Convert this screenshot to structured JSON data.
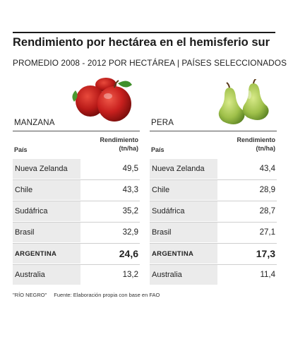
{
  "title": "Rendimiento por hectárea en el hemisferio sur",
  "subtitle": "PROMEDIO 2008 - 2012 POR HECTÁREA | PAÍSES SELECCIONADOS",
  "footer": {
    "credit": "\"RÍO NEGRO\"",
    "source": "Fuente: Elaboración propia con base en FAO"
  },
  "chart_data": [
    {
      "type": "table",
      "title": "MANZANA",
      "columns": [
        "País",
        "Rendimiento (tn/ha)"
      ],
      "rows": [
        {
          "country": "Nueva Zelanda",
          "value": "49,5",
          "highlight": false
        },
        {
          "country": "Chile",
          "value": "43,3",
          "highlight": false
        },
        {
          "country": "Sudáfrica",
          "value": "35,2",
          "highlight": false
        },
        {
          "country": "Brasil",
          "value": "32,9",
          "highlight": false
        },
        {
          "country": "ARGENTINA",
          "value": "24,6",
          "highlight": true
        },
        {
          "country": "Australia",
          "value": "13,2",
          "highlight": false
        }
      ],
      "icon": "red-apples-icon"
    },
    {
      "type": "table",
      "title": "PERA",
      "columns": [
        "País",
        "Rendimiento (tn/ha)"
      ],
      "rows": [
        {
          "country": "Nueva Zelanda",
          "value": "43,4",
          "highlight": false
        },
        {
          "country": "Chile",
          "value": "28,9",
          "highlight": false
        },
        {
          "country": "Sudáfrica",
          "value": "28,7",
          "highlight": false
        },
        {
          "country": "Brasil",
          "value": "27,1",
          "highlight": false
        },
        {
          "country": "ARGENTINA",
          "value": "17,3",
          "highlight": true
        },
        {
          "country": "Australia",
          "value": "11,4",
          "highlight": false
        }
      ],
      "icon": "green-pears-icon"
    }
  ],
  "header_value_lines": [
    "Rendimiento",
    "(tn/ha)"
  ],
  "colors": {
    "row_bg": "#ebebeb",
    "apple": "#c8201e",
    "pear": "#9fc04a"
  }
}
